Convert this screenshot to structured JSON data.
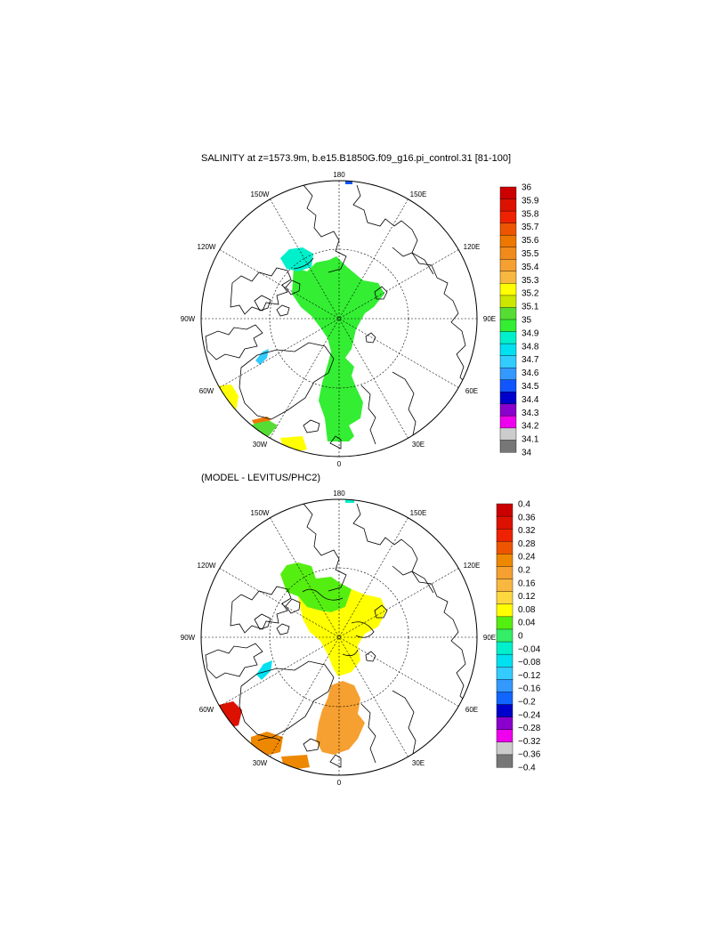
{
  "panel_top": {
    "title": "SALINITY at z=1573.9m, b.e15.B1850G.f09_g16.pi_control.31 [81-100]",
    "lon_labels": [
      "180",
      "150E",
      "120E",
      "90E",
      "60E",
      "30E",
      "0",
      "30W",
      "60W",
      "90W",
      "120W",
      "150W"
    ],
    "colorbar": {
      "labels": [
        "36",
        "35.9",
        "35.8",
        "35.7",
        "35.6",
        "35.5",
        "35.4",
        "35.3",
        "35.2",
        "35.1",
        "35",
        "34.9",
        "34.8",
        "34.7",
        "34.6",
        "34.5",
        "34.4",
        "34.3",
        "34.2",
        "34.1",
        "34"
      ],
      "colors": [
        "#cc0000",
        "#dd1100",
        "#ee2200",
        "#ee5500",
        "#ee7700",
        "#f08a1a",
        "#f5a030",
        "#f8b840",
        "#ffff00",
        "#cce600",
        "#55dd33",
        "#33ee33",
        "#00f0cc",
        "#00e0f0",
        "#33ccff",
        "#3399ff",
        "#1155ff",
        "#0000cc",
        "#8a00cc",
        "#ee00ee",
        "#cccccc",
        "#777777"
      ]
    }
  },
  "panel_bottom": {
    "title": "(MODEL - LEVITUS/PHC2)",
    "lon_labels": [
      "180",
      "150E",
      "120E",
      "90E",
      "60E",
      "30E",
      "0",
      "30W",
      "60W",
      "90W",
      "120W",
      "150W"
    ],
    "colorbar": {
      "labels": [
        "0.4",
        "0.36",
        "0.32",
        "0.28",
        "0.24",
        "0.2",
        "0.16",
        "0.12",
        "0.08",
        "0.04",
        "0",
        "−0.04",
        "−0.08",
        "−0.12",
        "−0.16",
        "−0.2",
        "−0.24",
        "−0.28",
        "−0.32",
        "−0.36",
        "−0.4"
      ],
      "colors": [
        "#cc0000",
        "#dd1100",
        "#ee2200",
        "#ee5500",
        "#ee8800",
        "#f5a030",
        "#f8b840",
        "#ffd840",
        "#ffff00",
        "#55ee11",
        "#33ee66",
        "#00f0cc",
        "#00e0f0",
        "#33ccff",
        "#3399ff",
        "#1166ff",
        "#0000cc",
        "#8a00cc",
        "#ee00ee",
        "#cccccc",
        "#777777"
      ]
    }
  }
}
